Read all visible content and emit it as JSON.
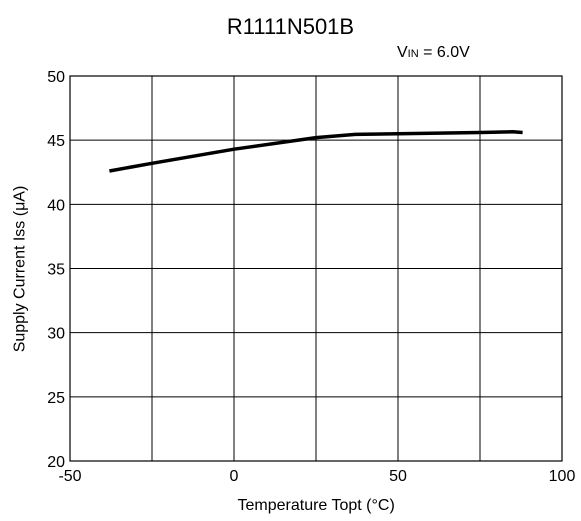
{
  "chart_data": {
    "type": "line",
    "title": "R1111N501B",
    "condition": {
      "symbol": "V",
      "subscript": "IN",
      "text": " = 6.0V"
    },
    "xlabel": "Temperature Topt (°C)",
    "ylabel": "Supply Current Iss (μA)",
    "xlim": [
      -50,
      100
    ],
    "ylim": [
      20,
      50
    ],
    "xticks": [
      -50,
      0,
      50,
      100
    ],
    "yticks": [
      20,
      25,
      30,
      35,
      40,
      45,
      50
    ],
    "x_grid_step": 25,
    "y_grid_step": 5,
    "grid": true,
    "series": [
      {
        "x": [
          -38,
          -25,
          0,
          25,
          37,
          50,
          75,
          85,
          88
        ],
        "y": [
          42.6,
          43.2,
          44.3,
          45.2,
          45.45,
          45.5,
          45.6,
          45.65,
          45.6
        ]
      }
    ]
  }
}
